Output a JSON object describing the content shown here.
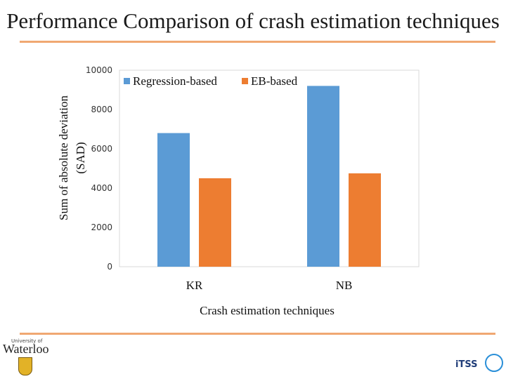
{
  "slide": {
    "title": "Performance Comparison of crash estimation techniques"
  },
  "logos": {
    "left_subtitle": "University of",
    "left_wordmark": "Waterloo",
    "right_wordmark": "iTSS"
  },
  "chart_data": {
    "type": "bar",
    "title": "",
    "categories": [
      "KR",
      "NB"
    ],
    "series": [
      {
        "name": "Regression-based",
        "color": "#5b9bd5",
        "values": [
          6800,
          9200
        ]
      },
      {
        "name": "EB-based",
        "color": "#ed7d31",
        "values": [
          4500,
          4750
        ]
      }
    ],
    "xlabel": "Crash estimation techniques",
    "ylabel_line1": "Sum of absolute deviation",
    "ylabel_line2": "(SAD)",
    "ylim": [
      0,
      10000
    ],
    "yticks": [
      {
        "value": 0,
        "label": "0"
      },
      {
        "value": 2000,
        "label": "2000"
      },
      {
        "value": 4000,
        "label": "4000"
      },
      {
        "value": 6000,
        "label": "6000"
      },
      {
        "value": 8000,
        "label": "8000"
      },
      {
        "value": 10000,
        "label": "10000"
      }
    ],
    "legend_position": "top",
    "grid": false
  }
}
